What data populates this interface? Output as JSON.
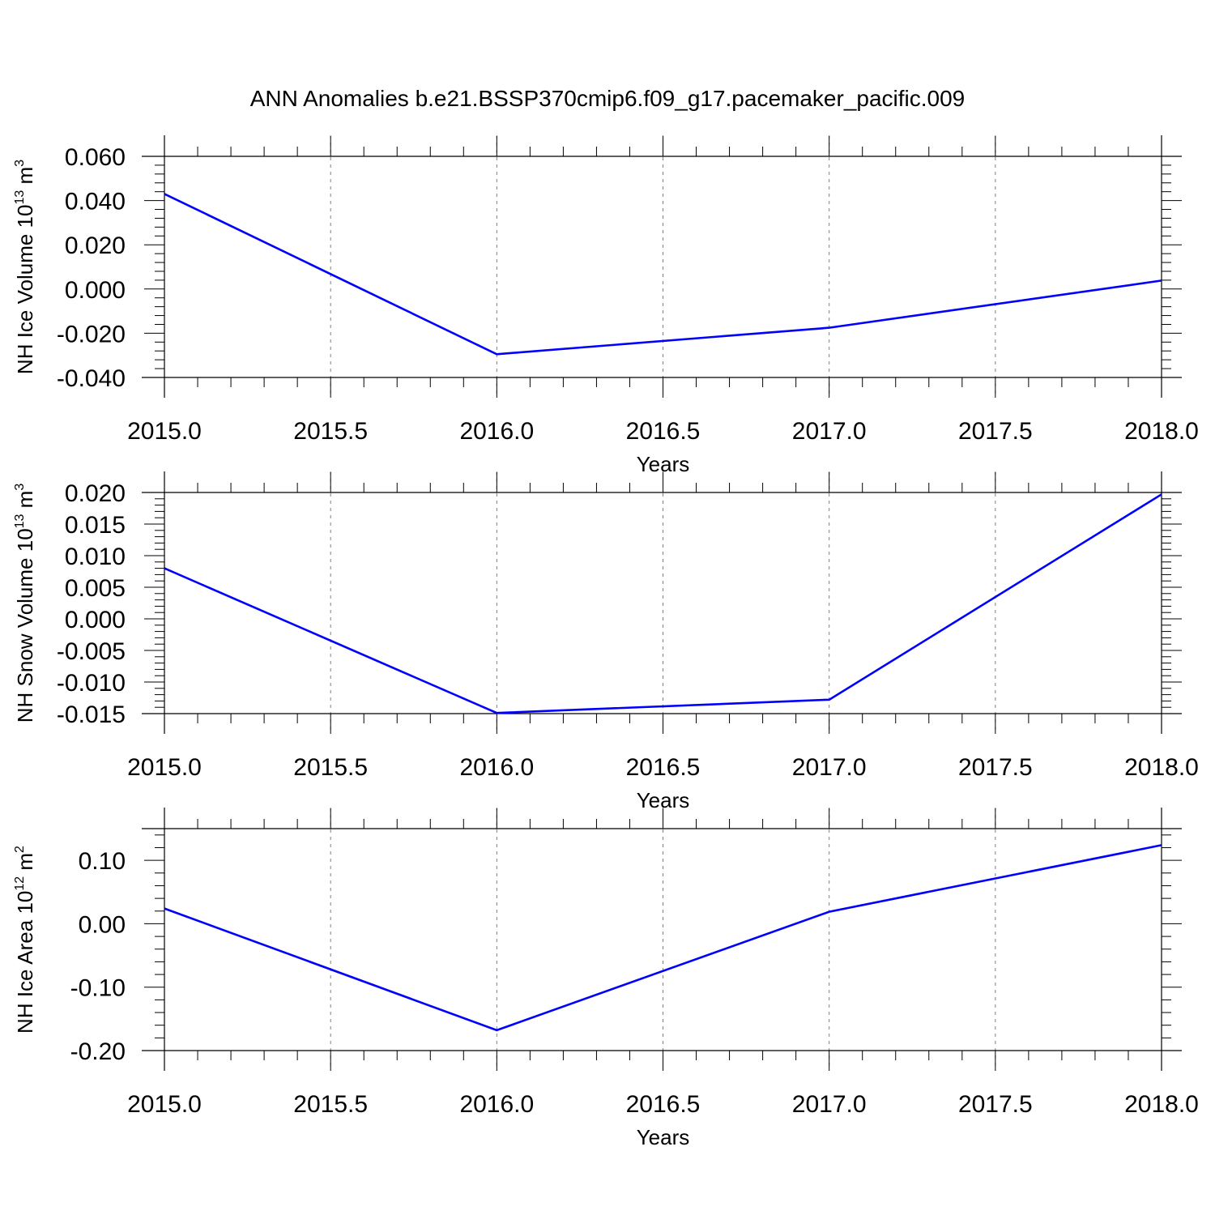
{
  "title": "ANN Anomalies b.e21.BSSP370cmip6.f09_g17.pacemaker_pacific.009",
  "colors": {
    "line": "#0000ff",
    "grid": "#808080",
    "axis": "#000000",
    "background": "#ffffff"
  },
  "chart_data": [
    {
      "type": "line",
      "xlabel": "Years",
      "ylabel": {
        "text": "NH Ice Volume 10",
        "sup": "13",
        "unit": " m",
        "unit_sup": "3"
      },
      "x": [
        2015,
        2016,
        2017,
        2018
      ],
      "series": [
        {
          "values": [
            0.043,
            -0.0295,
            -0.0175,
            0.0038
          ]
        }
      ],
      "xlim": [
        2015,
        2018
      ],
      "ylim": [
        -0.04,
        0.06
      ],
      "x_ticks": [
        2015.0,
        2015.5,
        2016.0,
        2016.5,
        2017.0,
        2017.5,
        2018.0
      ],
      "x_tick_labels": [
        "2015.0",
        "2015.5",
        "2016.0",
        "2016.5",
        "2017.0",
        "2017.5",
        "2018.0"
      ],
      "x_minor_step": 0.1,
      "y_ticks": [
        0.06,
        0.04,
        0.02,
        0.0,
        -0.02,
        -0.04
      ],
      "y_tick_labels": [
        "0.060",
        "0.040",
        "0.020",
        "0.000",
        "-0.020",
        "-0.040"
      ],
      "y_minor_step": 0.004,
      "grid": "vertical dashed at major x ticks"
    },
    {
      "type": "line",
      "xlabel": "Years",
      "ylabel": {
        "text": "NH Snow Volume 10",
        "sup": "13",
        "unit": " m",
        "unit_sup": "3"
      },
      "x": [
        2015,
        2016,
        2017,
        2018
      ],
      "series": [
        {
          "values": [
            0.008,
            -0.0149,
            -0.0128,
            0.0197
          ]
        }
      ],
      "xlim": [
        2015,
        2018
      ],
      "ylim": [
        -0.015,
        0.02
      ],
      "x_ticks": [
        2015.0,
        2015.5,
        2016.0,
        2016.5,
        2017.0,
        2017.5,
        2018.0
      ],
      "x_tick_labels": [
        "2015.0",
        "2015.5",
        "2016.0",
        "2016.5",
        "2017.0",
        "2017.5",
        "2018.0"
      ],
      "x_minor_step": 0.1,
      "y_ticks": [
        0.02,
        0.015,
        0.01,
        0.005,
        0.0,
        -0.005,
        -0.01,
        -0.015
      ],
      "y_tick_labels": [
        "0.020",
        "0.015",
        "0.010",
        "0.005",
        "0.000",
        "-0.005",
        "-0.010",
        "-0.015"
      ],
      "y_minor_step": 0.001,
      "grid": "vertical dashed at major x ticks"
    },
    {
      "type": "line",
      "xlabel": "Years",
      "ylabel": {
        "text": "NH Ice Area 10",
        "sup": "12",
        "unit": " m",
        "unit_sup": "2"
      },
      "x": [
        2015,
        2016,
        2017,
        2018
      ],
      "series": [
        {
          "values": [
            0.024,
            -0.168,
            0.019,
            0.124
          ]
        }
      ],
      "xlim": [
        2015,
        2018
      ],
      "ylim": [
        -0.2,
        0.15
      ],
      "x_ticks": [
        2015.0,
        2015.5,
        2016.0,
        2016.5,
        2017.0,
        2017.5,
        2018.0
      ],
      "x_tick_labels": [
        "2015.0",
        "2015.5",
        "2016.0",
        "2016.5",
        "2017.0",
        "2017.5",
        "2018.0"
      ],
      "x_minor_step": 0.1,
      "y_ticks": [
        0.1,
        0.0,
        -0.1,
        -0.2
      ],
      "y_tick_labels": [
        "0.10",
        "0.00",
        "-0.10",
        "-0.20"
      ],
      "y_minor_step": 0.02,
      "grid": "vertical dashed at major x ticks"
    }
  ]
}
